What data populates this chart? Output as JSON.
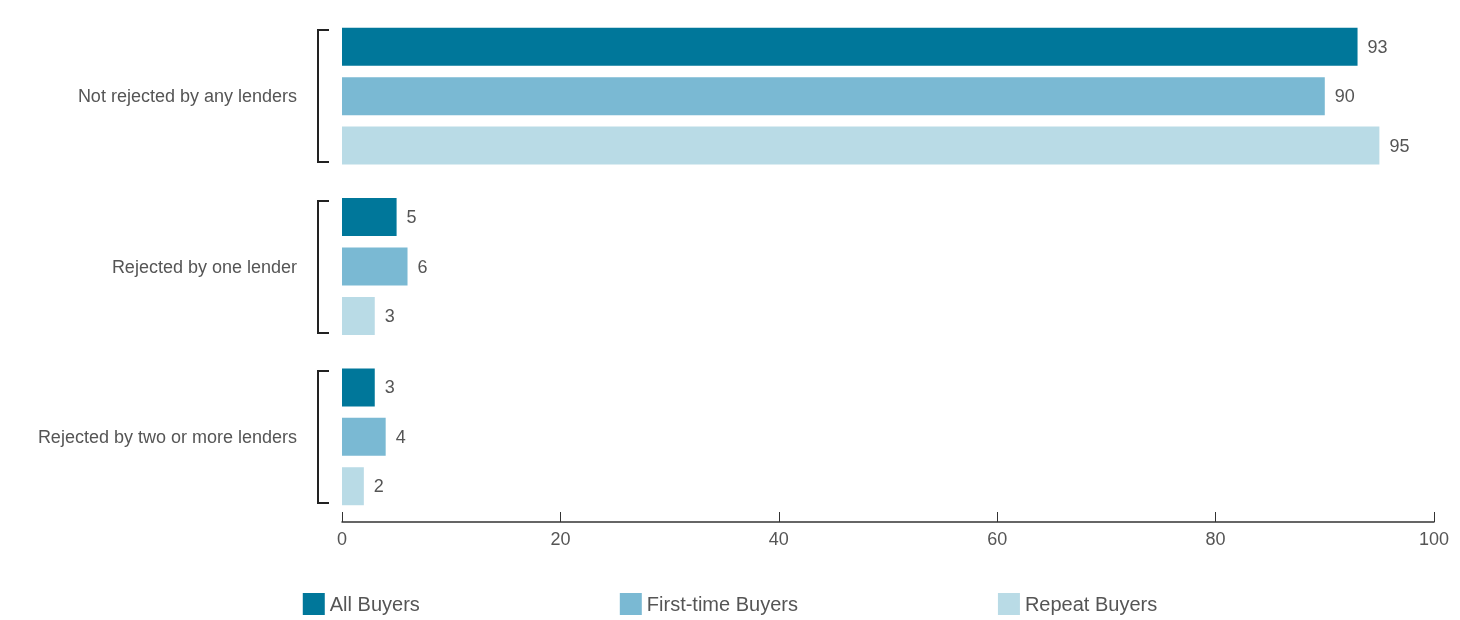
{
  "chart_data": {
    "type": "bar",
    "orientation": "horizontal",
    "categories": [
      "Not rejected by any lenders",
      "Rejected by one lender",
      "Rejected by two or more lenders"
    ],
    "series": [
      {
        "name": "All Buyers",
        "color": "#00779a",
        "values": [
          93,
          5,
          3
        ]
      },
      {
        "name": "First-time Buyers",
        "color": "#7ab9d3",
        "values": [
          90,
          6,
          4
        ]
      },
      {
        "name": "Repeat Buyers",
        "color": "#b9dbe6",
        "values": [
          95,
          3,
          2
        ]
      }
    ],
    "xlim": [
      0,
      100
    ],
    "xticks": [
      0,
      20,
      40,
      60,
      80,
      100
    ],
    "grid": false,
    "legend": "bottom",
    "data_labels": true
  }
}
